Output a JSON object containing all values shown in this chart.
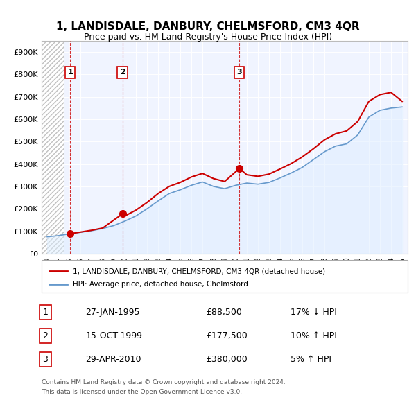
{
  "title": "1, LANDISDALE, DANBURY, CHELMSFORD, CM3 4QR",
  "subtitle": "Price paid vs. HM Land Registry's House Price Index (HPI)",
  "ylabel": "",
  "xlabel": "",
  "ylim": [
    0,
    950000
  ],
  "yticks": [
    0,
    100000,
    200000,
    300000,
    400000,
    500000,
    600000,
    700000,
    800000,
    900000
  ],
  "ytick_labels": [
    "£0",
    "£100K",
    "£200K",
    "£300K",
    "£400K",
    "£500K",
    "£600K",
    "£700K",
    "£800K",
    "£900K"
  ],
  "xlim_start": 1992.5,
  "xlim_end": 2025.5,
  "xticks": [
    1993,
    1994,
    1995,
    1996,
    1997,
    1998,
    1999,
    2000,
    2001,
    2002,
    2003,
    2004,
    2005,
    2006,
    2007,
    2008,
    2009,
    2010,
    2011,
    2012,
    2013,
    2014,
    2015,
    2016,
    2017,
    2018,
    2019,
    2020,
    2021,
    2022,
    2023,
    2024,
    2025
  ],
  "hatch_end_year": 1994.5,
  "sale_color": "#cc0000",
  "hpi_color": "#6699cc",
  "hpi_fill_color": "#ddeeff",
  "background_plot": "#f0f4ff",
  "hatch_color": "#c0c0c0",
  "sale_points": [
    {
      "year": 1995.07,
      "value": 88500,
      "label": "1"
    },
    {
      "year": 1999.79,
      "value": 177500,
      "label": "2"
    },
    {
      "year": 2010.33,
      "value": 380000,
      "label": "3"
    }
  ],
  "sale_vlines": [
    1995.07,
    1999.79,
    2010.33
  ],
  "legend_entries": [
    "1, LANDISDALE, DANBURY, CHELMSFORD, CM3 4QR (detached house)",
    "HPI: Average price, detached house, Chelmsford"
  ],
  "table_rows": [
    {
      "num": "1",
      "date": "27-JAN-1995",
      "price": "£88,500",
      "hpi": "17% ↓ HPI"
    },
    {
      "num": "2",
      "date": "15-OCT-1999",
      "price": "£177,500",
      "hpi": "10% ↑ HPI"
    },
    {
      "num": "3",
      "date": "29-APR-2010",
      "price": "£380,000",
      "hpi": "5% ↑ HPI"
    }
  ],
  "footnote1": "Contains HM Land Registry data © Crown copyright and database right 2024.",
  "footnote2": "This data is licensed under the Open Government Licence v3.0.",
  "hpi_data_years": [
    1993,
    1994,
    1995,
    1996,
    1997,
    1998,
    1999,
    2000,
    2001,
    2002,
    2003,
    2004,
    2005,
    2006,
    2007,
    2008,
    2009,
    2010,
    2011,
    2012,
    2013,
    2014,
    2015,
    2016,
    2017,
    2018,
    2019,
    2020,
    2021,
    2022,
    2023,
    2024,
    2025
  ],
  "hpi_data_values": [
    75000,
    80000,
    88000,
    95000,
    102000,
    112000,
    125000,
    145000,
    168000,
    200000,
    235000,
    268000,
    285000,
    305000,
    320000,
    300000,
    290000,
    305000,
    315000,
    310000,
    318000,
    338000,
    360000,
    385000,
    420000,
    455000,
    480000,
    490000,
    530000,
    610000,
    640000,
    650000,
    655000
  ],
  "sale_line_years": [
    1995.07,
    1996,
    1997,
    1998,
    1999.79,
    2000,
    2001,
    2002,
    2003,
    2004,
    2005,
    2006,
    2007,
    2008,
    2009,
    2010.33,
    2011,
    2012,
    2013,
    2014,
    2015,
    2016,
    2017,
    2018,
    2019,
    2020,
    2021,
    2022,
    2023,
    2024,
    2025
  ],
  "sale_line_values": [
    88500,
    96000,
    104000,
    114000,
    177500,
    168000,
    194000,
    228000,
    268000,
    300000,
    318000,
    342000,
    358000,
    335000,
    322000,
    380000,
    352000,
    345000,
    355000,
    378000,
    402000,
    432000,
    468000,
    508000,
    535000,
    548000,
    590000,
    680000,
    710000,
    720000,
    680000
  ]
}
